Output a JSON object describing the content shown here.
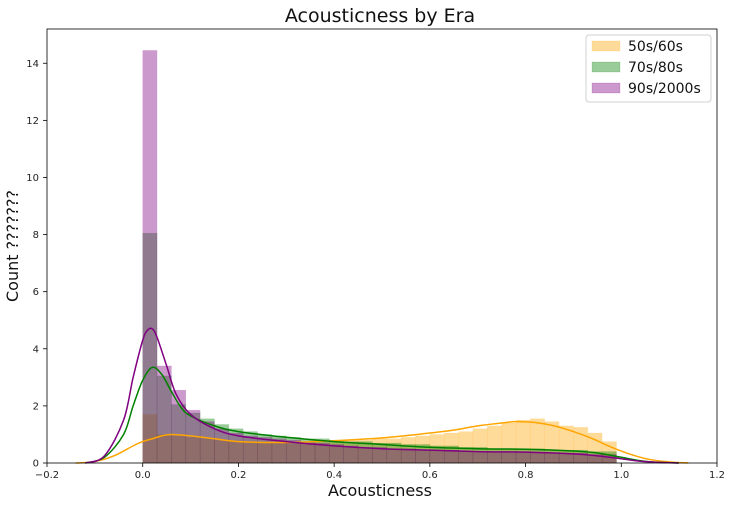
{
  "chart_data": {
    "type": "bar",
    "title": "Acousticness by Era",
    "xlabel": "Acousticness",
    "ylabel": "Count ???????",
    "xlim": [
      -0.2,
      1.2
    ],
    "ylim": [
      0,
      15.2
    ],
    "xticks": [
      -0.2,
      0.0,
      0.2,
      0.4,
      0.6,
      0.8,
      1.0,
      1.2
    ],
    "xtick_labels": [
      "−0.2",
      "0.0",
      "0.2",
      "0.4",
      "0.6",
      "0.8",
      "1.0",
      "1.2"
    ],
    "yticks": [
      0,
      2,
      4,
      6,
      8,
      10,
      12,
      14
    ],
    "ytick_labels": [
      "0",
      "2",
      "4",
      "6",
      "8",
      "10",
      "12",
      "14"
    ],
    "grid": false,
    "legend": "top-right",
    "bin_width": 0.03,
    "bins_start": 0.0,
    "series": [
      {
        "name": "50s/60s",
        "color": "#FFA500",
        "bar_opacity": 0.4,
        "bar_values": [
          1.7,
          1.0,
          0.95,
          0.9,
          0.85,
          0.8,
          0.75,
          0.75,
          0.7,
          0.7,
          0.7,
          0.7,
          0.72,
          0.75,
          0.8,
          0.8,
          0.85,
          0.85,
          0.9,
          0.95,
          1.0,
          1.05,
          1.1,
          1.2,
          1.3,
          1.4,
          1.5,
          1.55,
          1.45,
          1.3,
          1.25,
          1.05,
          0.75
        ],
        "kde_x": [
          -0.14,
          -0.1,
          -0.06,
          -0.02,
          0.0,
          0.02,
          0.04,
          0.06,
          0.1,
          0.15,
          0.2,
          0.3,
          0.4,
          0.5,
          0.6,
          0.65,
          0.7,
          0.75,
          0.78,
          0.82,
          0.86,
          0.9,
          0.94,
          0.98,
          1.02,
          1.06,
          1.1,
          1.14
        ],
        "kde_y": [
          0.0,
          0.05,
          0.25,
          0.6,
          0.75,
          0.85,
          0.95,
          1.0,
          0.95,
          0.85,
          0.75,
          0.72,
          0.78,
          0.88,
          1.05,
          1.15,
          1.3,
          1.4,
          1.45,
          1.42,
          1.3,
          1.1,
          0.85,
          0.55,
          0.3,
          0.12,
          0.04,
          0.0
        ]
      },
      {
        "name": "70s/80s",
        "color": "#008000",
        "bar_opacity": 0.4,
        "bar_values": [
          8.05,
          3.05,
          2.05,
          1.75,
          1.55,
          1.35,
          1.2,
          1.1,
          1.0,
          0.95,
          0.9,
          0.85,
          0.85,
          0.8,
          0.75,
          0.75,
          0.7,
          0.7,
          0.65,
          0.65,
          0.6,
          0.6,
          0.55,
          0.55,
          0.5,
          0.5,
          0.5,
          0.5,
          0.45,
          0.45,
          0.45,
          0.4,
          0.4
        ],
        "kde_x": [
          -0.12,
          -0.08,
          -0.04,
          -0.02,
          0.0,
          0.02,
          0.04,
          0.06,
          0.08,
          0.1,
          0.15,
          0.2,
          0.3,
          0.4,
          0.5,
          0.6,
          0.7,
          0.8,
          0.9,
          0.95,
          1.0,
          1.04,
          1.08,
          1.12
        ],
        "kde_y": [
          0.0,
          0.2,
          1.0,
          2.0,
          2.9,
          3.35,
          3.1,
          2.5,
          1.95,
          1.65,
          1.3,
          1.1,
          0.9,
          0.75,
          0.65,
          0.55,
          0.5,
          0.48,
          0.42,
          0.35,
          0.2,
          0.08,
          0.02,
          0.0
        ]
      },
      {
        "name": "90s/2000s",
        "color": "#800080",
        "bar_opacity": 0.4,
        "bar_values": [
          14.45,
          3.4,
          2.55,
          1.85,
          1.45,
          1.2,
          1.05,
          0.95,
          0.9,
          0.85,
          0.8,
          0.75,
          0.7,
          0.65,
          0.6,
          0.55,
          0.55,
          0.5,
          0.5,
          0.45,
          0.45,
          0.45,
          0.4,
          0.4,
          0.4,
          0.4,
          0.4,
          0.35,
          0.35,
          0.35,
          0.35,
          0.3,
          0.3
        ],
        "kde_x": [
          -0.12,
          -0.08,
          -0.04,
          -0.02,
          0.0,
          0.01,
          0.02,
          0.03,
          0.05,
          0.07,
          0.1,
          0.15,
          0.2,
          0.3,
          0.4,
          0.5,
          0.6,
          0.7,
          0.8,
          0.9,
          0.95,
          1.0,
          1.04,
          1.08,
          1.12
        ],
        "kde_y": [
          0.0,
          0.25,
          1.5,
          3.0,
          4.3,
          4.65,
          4.7,
          4.4,
          3.4,
          2.4,
          1.7,
          1.2,
          0.95,
          0.75,
          0.6,
          0.5,
          0.45,
          0.4,
          0.38,
          0.32,
          0.25,
          0.15,
          0.06,
          0.02,
          0.0
        ]
      }
    ]
  }
}
